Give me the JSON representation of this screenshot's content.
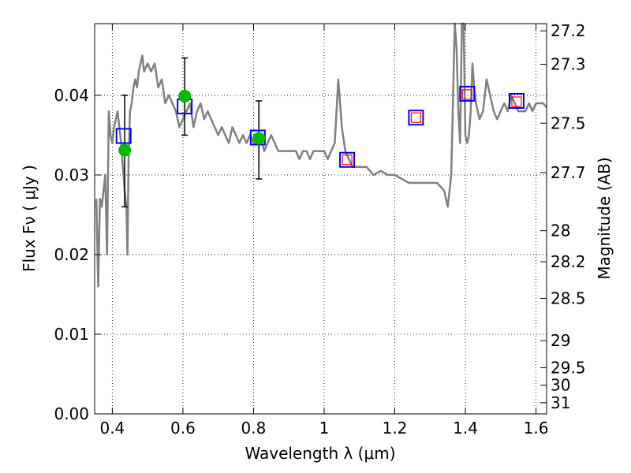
{
  "chart_data": {
    "type": "line",
    "xlabel": "Wavelength  λ (μm)",
    "ylabel": "Flux  Fν  ( μJy )",
    "ylabel_right": "Magnitude (AB)",
    "xlim": [
      0.35,
      1.63
    ],
    "ylim": [
      0.0,
      0.049
    ],
    "x_ticks": [
      {
        "value": 0.4,
        "label": "0.4"
      },
      {
        "value": 0.6,
        "label": "0.6"
      },
      {
        "value": 0.8,
        "label": "0.8"
      },
      {
        "value": 1.0,
        "label": "1"
      },
      {
        "value": 1.2,
        "label": "1.2"
      },
      {
        "value": 1.4,
        "label": "1.4"
      },
      {
        "value": 1.6,
        "label": "1.6"
      }
    ],
    "y_ticks": [
      {
        "value": 0.0,
        "label": "0.00"
      },
      {
        "value": 0.01,
        "label": "0.01"
      },
      {
        "value": 0.02,
        "label": "0.02"
      },
      {
        "value": 0.03,
        "label": "0.03"
      },
      {
        "value": 0.04,
        "label": "0.04"
      }
    ],
    "mag_ticks": [
      {
        "label": "27.2",
        "flux": 0.0481
      },
      {
        "label": "27.3",
        "flux": 0.0439
      },
      {
        "label": "27.5",
        "flux": 0.0365
      },
      {
        "label": "27.7",
        "flux": 0.0303
      },
      {
        "label": "28",
        "flux": 0.023
      },
      {
        "label": "28.2",
        "flux": 0.0191
      },
      {
        "label": "28.5",
        "flux": 0.0145
      },
      {
        "label": "29",
        "flux": 0.0092
      },
      {
        "label": "29.5",
        "flux": 0.0058
      },
      {
        "label": "30",
        "flux": 0.0036
      },
      {
        "label": "31",
        "flux": 0.0014
      }
    ],
    "grid": true,
    "series": [
      {
        "kind": "template_spectrum",
        "color": "#808080",
        "x": [
          0.355,
          0.36,
          0.365,
          0.37,
          0.375,
          0.38,
          0.385,
          0.39,
          0.395,
          0.4,
          0.405,
          0.41,
          0.415,
          0.42,
          0.425,
          0.43,
          0.435,
          0.44,
          0.443,
          0.446,
          0.45,
          0.455,
          0.46,
          0.465,
          0.47,
          0.475,
          0.48,
          0.485,
          0.49,
          0.5,
          0.51,
          0.52,
          0.53,
          0.54,
          0.55,
          0.56,
          0.57,
          0.58,
          0.585,
          0.59,
          0.6,
          0.61,
          0.62,
          0.63,
          0.64,
          0.65,
          0.66,
          0.67,
          0.68,
          0.69,
          0.7,
          0.71,
          0.72,
          0.73,
          0.74,
          0.75,
          0.76,
          0.77,
          0.78,
          0.79,
          0.8,
          0.81,
          0.82,
          0.83,
          0.84,
          0.85,
          0.86,
          0.87,
          0.88,
          0.89,
          0.9,
          0.91,
          0.92,
          0.93,
          0.94,
          0.95,
          0.96,
          0.97,
          0.98,
          0.99,
          1.0,
          1.01,
          1.02,
          1.03,
          1.04,
          1.05,
          1.06,
          1.07,
          1.08,
          1.1,
          1.12,
          1.14,
          1.16,
          1.18,
          1.2,
          1.22,
          1.24,
          1.26,
          1.28,
          1.3,
          1.32,
          1.34,
          1.35,
          1.36,
          1.37,
          1.375,
          1.38,
          1.385,
          1.39,
          1.395,
          1.4,
          1.405,
          1.41,
          1.415,
          1.42,
          1.425,
          1.43,
          1.44,
          1.45,
          1.46,
          1.47,
          1.48,
          1.49,
          1.5,
          1.51,
          1.52,
          1.53,
          1.54,
          1.55,
          1.56,
          1.57,
          1.58,
          1.59,
          1.6,
          1.61,
          1.62,
          1.63
        ],
        "y": [
          0.027,
          0.016,
          0.027,
          0.026,
          0.028,
          0.03,
          0.02,
          0.038,
          0.035,
          0.034,
          0.036,
          0.037,
          0.038,
          0.036,
          0.034,
          0.031,
          0.028,
          0.026,
          0.02,
          0.032,
          0.038,
          0.039,
          0.041,
          0.042,
          0.041,
          0.043,
          0.044,
          0.045,
          0.043,
          0.044,
          0.043,
          0.044,
          0.041,
          0.042,
          0.039,
          0.04,
          0.039,
          0.038,
          0.037,
          0.036,
          0.037,
          0.038,
          0.039,
          0.036,
          0.038,
          0.039,
          0.037,
          0.038,
          0.037,
          0.036,
          0.035,
          0.036,
          0.035,
          0.034,
          0.036,
          0.035,
          0.034,
          0.035,
          0.034,
          0.035,
          0.034,
          0.034,
          0.035,
          0.033,
          0.034,
          0.035,
          0.034,
          0.033,
          0.033,
          0.033,
          0.033,
          0.033,
          0.033,
          0.032,
          0.033,
          0.033,
          0.032,
          0.033,
          0.033,
          0.033,
          0.033,
          0.032,
          0.033,
          0.034,
          0.042,
          0.036,
          0.033,
          0.032,
          0.031,
          0.031,
          0.031,
          0.03,
          0.0305,
          0.03,
          0.03,
          0.0295,
          0.029,
          0.029,
          0.029,
          0.029,
          0.029,
          0.028,
          0.026,
          0.03,
          0.049,
          0.046,
          0.038,
          0.034,
          0.049,
          0.049,
          0.035,
          0.034,
          0.035,
          0.038,
          0.044,
          0.041,
          0.039,
          0.037,
          0.038,
          0.042,
          0.04,
          0.038,
          0.037,
          0.038,
          0.039,
          0.038,
          0.04,
          0.039,
          0.038,
          0.038,
          0.038,
          0.039,
          0.038,
          0.039,
          0.039,
          0.039,
          0.0385
        ]
      },
      {
        "kind": "model_photometry",
        "marker": "blue open square",
        "color": "#0000ff",
        "x": [
          0.432,
          0.605,
          0.812,
          1.065,
          1.26,
          1.405,
          1.545
        ],
        "y": [
          0.0349,
          0.0386,
          0.0347,
          0.0319,
          0.0372,
          0.0402,
          0.0393
        ]
      },
      {
        "kind": "nir_photometry",
        "marker": "red open square",
        "color": "#ff0000",
        "x": [
          1.065,
          1.26,
          1.405,
          1.545
        ],
        "y": [
          0.0319,
          0.0372,
          0.0401,
          0.0392
        ]
      },
      {
        "kind": "optical_photometry",
        "marker": "green filled circle with error bars",
        "color": "#00bb00",
        "x": [
          0.435,
          0.605,
          0.815
        ],
        "y": [
          0.0331,
          0.0399,
          0.0346
        ],
        "err_low": [
          0.026,
          0.035,
          0.0295
        ],
        "err_high": [
          0.04,
          0.0447,
          0.0393
        ]
      }
    ]
  }
}
